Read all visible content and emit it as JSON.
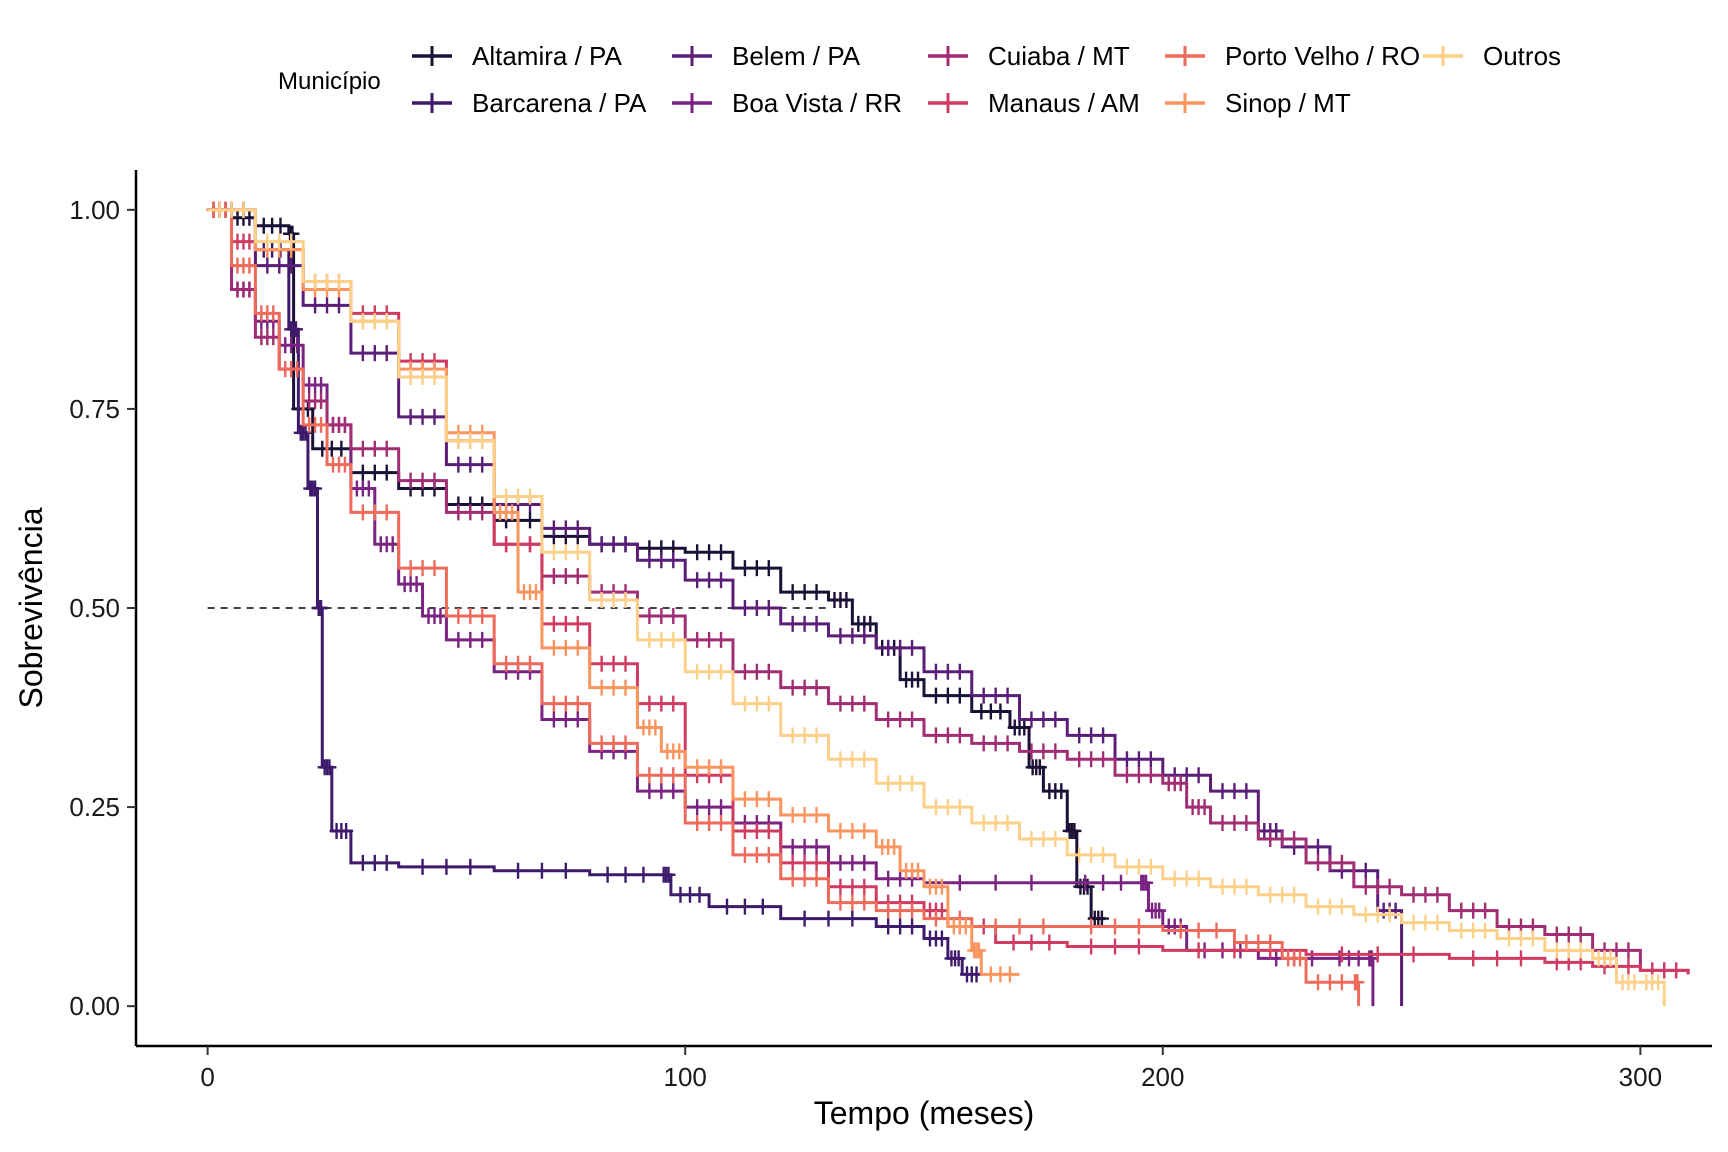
{
  "chart_data": {
    "type": "line",
    "subtype": "kaplan-meier step curves with censor marks",
    "xlabel": "Tempo (meses)",
    "ylabel": "Sobrevivência",
    "xlim": [
      -15,
      315
    ],
    "ylim": [
      -0.05,
      1.05
    ],
    "x_ticks": [
      0,
      100,
      200,
      300
    ],
    "y_ticks": [
      0.0,
      0.25,
      0.5,
      0.75,
      1.0
    ],
    "y_tick_labels": [
      "0.00",
      "0.25",
      "0.50",
      "0.75",
      "1.00"
    ],
    "grid": false,
    "reference_line": {
      "y": 0.5,
      "x_range": [
        0,
        130
      ],
      "style": "dashed"
    },
    "legend": {
      "title": "Município",
      "position": "top"
    },
    "series": [
      {
        "name": "Altamira / PA",
        "color": "#1b1036",
        "points": [
          [
            0,
            1.0
          ],
          [
            5,
            0.99
          ],
          [
            10,
            0.98
          ],
          [
            17,
            0.97
          ],
          [
            18,
            0.75
          ],
          [
            22,
            0.7
          ],
          [
            30,
            0.67
          ],
          [
            40,
            0.65
          ],
          [
            50,
            0.63
          ],
          [
            60,
            0.61
          ],
          [
            70,
            0.59
          ],
          [
            80,
            0.58
          ],
          [
            90,
            0.575
          ],
          [
            100,
            0.57
          ],
          [
            110,
            0.55
          ],
          [
            120,
            0.52
          ],
          [
            130,
            0.51
          ],
          [
            135,
            0.48
          ],
          [
            140,
            0.45
          ],
          [
            145,
            0.41
          ],
          [
            150,
            0.39
          ],
          [
            160,
            0.37
          ],
          [
            168,
            0.35
          ],
          [
            172,
            0.3
          ],
          [
            175,
            0.27
          ],
          [
            180,
            0.22
          ],
          [
            182,
            0.15
          ],
          [
            185,
            0.11
          ],
          [
            188,
            0.11
          ]
        ]
      },
      {
        "name": "Barcarena / PA",
        "color": "#3e1a6b",
        "points": [
          [
            0,
            1.0
          ],
          [
            10,
            0.95
          ],
          [
            17,
            0.85
          ],
          [
            19,
            0.72
          ],
          [
            21,
            0.65
          ],
          [
            23,
            0.5
          ],
          [
            24,
            0.3
          ],
          [
            26,
            0.22
          ],
          [
            30,
            0.18
          ],
          [
            40,
            0.175
          ],
          [
            60,
            0.17
          ],
          [
            80,
            0.165
          ],
          [
            95,
            0.165
          ],
          [
            97,
            0.14
          ],
          [
            105,
            0.125
          ],
          [
            120,
            0.11
          ],
          [
            140,
            0.1
          ],
          [
            150,
            0.085
          ],
          [
            155,
            0.06
          ],
          [
            158,
            0.04
          ],
          [
            162,
            0.04
          ]
        ]
      },
      {
        "name": "Belem / PA",
        "color": "#5b1e78",
        "points": [
          [
            0,
            1.0
          ],
          [
            10,
            0.93
          ],
          [
            20,
            0.88
          ],
          [
            30,
            0.82
          ],
          [
            40,
            0.74
          ],
          [
            50,
            0.68
          ],
          [
            60,
            0.63
          ],
          [
            70,
            0.6
          ],
          [
            80,
            0.58
          ],
          [
            90,
            0.56
          ],
          [
            100,
            0.535
          ],
          [
            110,
            0.5
          ],
          [
            120,
            0.48
          ],
          [
            130,
            0.465
          ],
          [
            140,
            0.45
          ],
          [
            150,
            0.42
          ],
          [
            160,
            0.39
          ],
          [
            170,
            0.36
          ],
          [
            180,
            0.34
          ],
          [
            190,
            0.31
          ],
          [
            200,
            0.29
          ],
          [
            210,
            0.27
          ],
          [
            220,
            0.22
          ],
          [
            225,
            0.2
          ],
          [
            235,
            0.17
          ],
          [
            245,
            0.12
          ],
          [
            250,
            0.0
          ]
        ]
      },
      {
        "name": "Boa Vista / RR",
        "color": "#7b2382",
        "points": [
          [
            0,
            1.0
          ],
          [
            5,
            0.9
          ],
          [
            10,
            0.86
          ],
          [
            15,
            0.83
          ],
          [
            20,
            0.78
          ],
          [
            25,
            0.73
          ],
          [
            30,
            0.65
          ],
          [
            35,
            0.58
          ],
          [
            40,
            0.53
          ],
          [
            45,
            0.49
          ],
          [
            50,
            0.46
          ],
          [
            60,
            0.42
          ],
          [
            70,
            0.36
          ],
          [
            80,
            0.32
          ],
          [
            90,
            0.27
          ],
          [
            100,
            0.25
          ],
          [
            110,
            0.23
          ],
          [
            120,
            0.2
          ],
          [
            130,
            0.18
          ],
          [
            140,
            0.16
          ],
          [
            150,
            0.155
          ],
          [
            180,
            0.155
          ],
          [
            195,
            0.155
          ],
          [
            197,
            0.12
          ],
          [
            200,
            0.1
          ],
          [
            205,
            0.07
          ],
          [
            220,
            0.06
          ],
          [
            235,
            0.06
          ],
          [
            243,
            0.06
          ],
          [
            244,
            0.0
          ]
        ]
      },
      {
        "name": "Cuiaba / MT",
        "color": "#a12d73",
        "points": [
          [
            0,
            1.0
          ],
          [
            5,
            0.9
          ],
          [
            10,
            0.84
          ],
          [
            15,
            0.8
          ],
          [
            20,
            0.76
          ],
          [
            25,
            0.73
          ],
          [
            30,
            0.7
          ],
          [
            40,
            0.66
          ],
          [
            50,
            0.62
          ],
          [
            60,
            0.58
          ],
          [
            70,
            0.54
          ],
          [
            80,
            0.52
          ],
          [
            90,
            0.49
          ],
          [
            100,
            0.46
          ],
          [
            110,
            0.42
          ],
          [
            120,
            0.4
          ],
          [
            130,
            0.38
          ],
          [
            140,
            0.36
          ],
          [
            150,
            0.34
          ],
          [
            160,
            0.33
          ],
          [
            170,
            0.32
          ],
          [
            180,
            0.31
          ],
          [
            190,
            0.29
          ],
          [
            200,
            0.28
          ],
          [
            205,
            0.25
          ],
          [
            210,
            0.23
          ],
          [
            220,
            0.21
          ],
          [
            230,
            0.18
          ],
          [
            240,
            0.15
          ],
          [
            250,
            0.14
          ],
          [
            260,
            0.12
          ],
          [
            270,
            0.1
          ],
          [
            280,
            0.09
          ],
          [
            290,
            0.07
          ],
          [
            300,
            0.045
          ],
          [
            310,
            0.04
          ]
        ]
      },
      {
        "name": "Manaus / AM",
        "color": "#d03c61",
        "points": [
          [
            0,
            1.0
          ],
          [
            5,
            0.96
          ],
          [
            10,
            0.95
          ],
          [
            20,
            0.91
          ],
          [
            30,
            0.87
          ],
          [
            40,
            0.81
          ],
          [
            50,
            0.71
          ],
          [
            60,
            0.58
          ],
          [
            70,
            0.48
          ],
          [
            80,
            0.43
          ],
          [
            90,
            0.38
          ],
          [
            100,
            0.29
          ],
          [
            110,
            0.22
          ],
          [
            120,
            0.18
          ],
          [
            130,
            0.15
          ],
          [
            140,
            0.13
          ],
          [
            150,
            0.12
          ],
          [
            155,
            0.1
          ],
          [
            165,
            0.08
          ],
          [
            180,
            0.075
          ],
          [
            200,
            0.07
          ],
          [
            230,
            0.065
          ],
          [
            260,
            0.06
          ],
          [
            280,
            0.055
          ],
          [
            290,
            0.05
          ],
          [
            300,
            0.045
          ],
          [
            310,
            0.04
          ]
        ]
      },
      {
        "name": "Porto Velho / RO",
        "color": "#ee6a5b",
        "points": [
          [
            0,
            1.0
          ],
          [
            5,
            0.93
          ],
          [
            10,
            0.87
          ],
          [
            15,
            0.8
          ],
          [
            20,
            0.73
          ],
          [
            25,
            0.68
          ],
          [
            30,
            0.62
          ],
          [
            40,
            0.55
          ],
          [
            50,
            0.49
          ],
          [
            60,
            0.43
          ],
          [
            70,
            0.38
          ],
          [
            80,
            0.33
          ],
          [
            90,
            0.29
          ],
          [
            100,
            0.23
          ],
          [
            110,
            0.19
          ],
          [
            120,
            0.16
          ],
          [
            130,
            0.13
          ],
          [
            140,
            0.12
          ],
          [
            150,
            0.11
          ],
          [
            160,
            0.1
          ],
          [
            180,
            0.1
          ],
          [
            200,
            0.095
          ],
          [
            215,
            0.08
          ],
          [
            225,
            0.06
          ],
          [
            230,
            0.03
          ],
          [
            240,
            0.03
          ],
          [
            241,
            0.0
          ]
        ]
      },
      {
        "name": "Sinop / MT",
        "color": "#fa9560",
        "points": [
          [
            0,
            1.0
          ],
          [
            10,
            0.95
          ],
          [
            20,
            0.9
          ],
          [
            30,
            0.86
          ],
          [
            40,
            0.8
          ],
          [
            50,
            0.72
          ],
          [
            60,
            0.62
          ],
          [
            65,
            0.52
          ],
          [
            70,
            0.45
          ],
          [
            80,
            0.4
          ],
          [
            90,
            0.35
          ],
          [
            95,
            0.32
          ],
          [
            100,
            0.3
          ],
          [
            110,
            0.26
          ],
          [
            120,
            0.24
          ],
          [
            130,
            0.22
          ],
          [
            140,
            0.2
          ],
          [
            145,
            0.17
          ],
          [
            150,
            0.15
          ],
          [
            155,
            0.1
          ],
          [
            160,
            0.07
          ],
          [
            162,
            0.04
          ],
          [
            170,
            0.04
          ]
        ]
      },
      {
        "name": "Outros",
        "color": "#fcd089",
        "points": [
          [
            0,
            1.0
          ],
          [
            10,
            0.96
          ],
          [
            20,
            0.91
          ],
          [
            30,
            0.86
          ],
          [
            40,
            0.79
          ],
          [
            50,
            0.71
          ],
          [
            60,
            0.64
          ],
          [
            70,
            0.57
          ],
          [
            80,
            0.51
          ],
          [
            90,
            0.46
          ],
          [
            100,
            0.42
          ],
          [
            110,
            0.38
          ],
          [
            120,
            0.34
          ],
          [
            130,
            0.31
          ],
          [
            140,
            0.28
          ],
          [
            150,
            0.25
          ],
          [
            160,
            0.23
          ],
          [
            170,
            0.21
          ],
          [
            180,
            0.19
          ],
          [
            190,
            0.175
          ],
          [
            200,
            0.16
          ],
          [
            210,
            0.15
          ],
          [
            220,
            0.14
          ],
          [
            230,
            0.125
          ],
          [
            240,
            0.115
          ],
          [
            250,
            0.105
          ],
          [
            260,
            0.095
          ],
          [
            270,
            0.085
          ],
          [
            280,
            0.07
          ],
          [
            290,
            0.06
          ],
          [
            295,
            0.03
          ],
          [
            300,
            0.03
          ],
          [
            305,
            0.0
          ]
        ]
      }
    ]
  }
}
